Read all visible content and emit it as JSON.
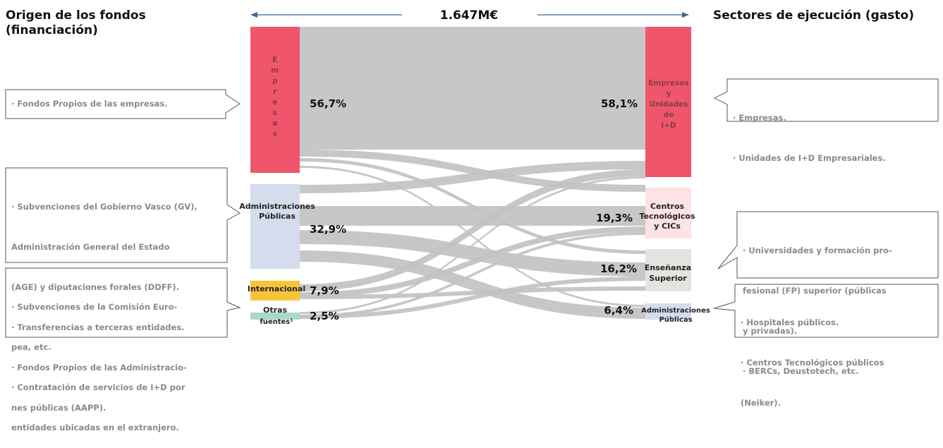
{
  "header": {
    "left_title": "Origen de los fondos\n(financiación)",
    "right_title": "Sectores de ejecución (gasto)",
    "total": "1.647M€"
  },
  "sources": [
    {
      "label": "E\nm\np\nr\ne\ns\na\ns",
      "percent": "56,7%",
      "color": "#f0566b"
    },
    {
      "label": "Administraciones\nPúblicas",
      "percent": "32,9%",
      "color": "#d4dcee"
    },
    {
      "label": "Internacional",
      "percent": "7,9%",
      "color": "#f8c53a"
    },
    {
      "label": "Otras\nfuentes¹",
      "percent": "2,5%",
      "color": "#a8dbc6"
    }
  ],
  "targets": [
    {
      "label": "Empresas\ny\nUnidades\nde\nI+D",
      "percent": "58,1%",
      "color": "#f0566b"
    },
    {
      "label": "Centros\nTecnológicos\ny CICs",
      "percent": "19,3%",
      "color": "#fde2e6"
    },
    {
      "label": "Enseñanza\nSuperior",
      "percent": "16,2%",
      "color": "#e4e3df"
    },
    {
      "label": "Administraciones\nPúblicas",
      "percent": "6,4%",
      "color": "#d4dcee"
    }
  ],
  "callouts_left": [
    {
      "lines": [
        "· Fondos Propios de las empresas."
      ]
    },
    {
      "lines": [
        "· Subvenciones del Gobierno Vasco (GV),",
        "  Administración General del Estado",
        "  (AGE) y diputaciones forales (DDFF).",
        "· Transferencias a terceras  entidades.",
        "· Fondos Propios de las Administracio-",
        "  nes públicas (AAPP)."
      ]
    },
    {
      "lines": [
        "· Subvenciones de la Comisión  Euro-",
        "  pea, etc.",
        "· Contratación de servicios de I+D  por",
        "  entidades ubicadas en el  extranjero."
      ]
    }
  ],
  "callouts_right": [
    {
      "lines": [
        "· Empresas.",
        "· Unidades de I+D  Empresariales."
      ]
    },
    {
      "lines": [
        "· Universidades y formación pro-",
        "  fesional (FP) superior  (públicas",
        "  y privadas).",
        "· BERCs, Deustotech, etc."
      ]
    },
    {
      "lines": [
        "· Hospitales públicos.",
        "· Centros Tecnológicos públicos",
        "  (Neiker)."
      ]
    }
  ]
}
